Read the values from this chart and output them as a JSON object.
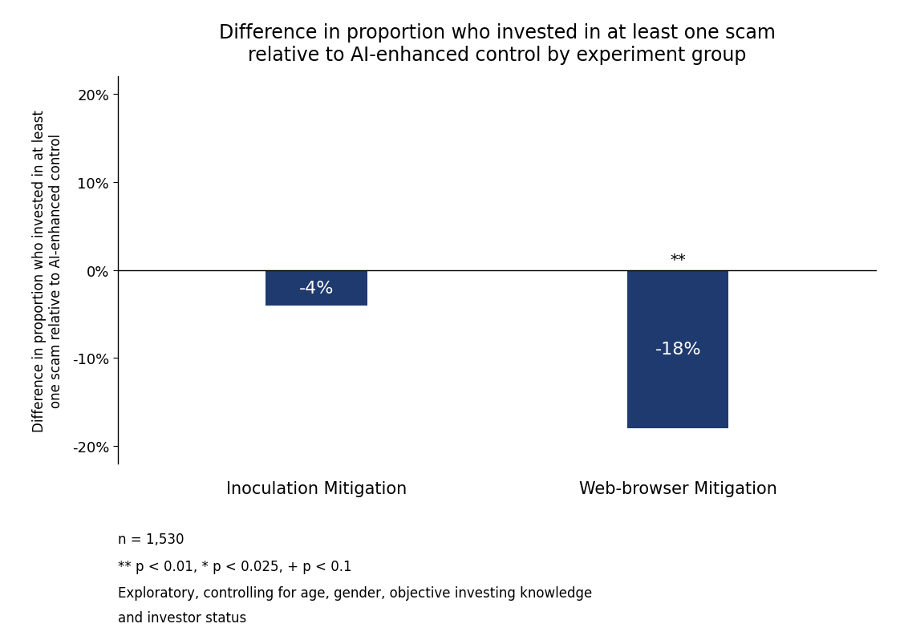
{
  "title": "Difference in proportion who invested in at least one scam\nrelative to AI-enhanced control by experiment group",
  "ylabel": "Difference in proportion who invested in at least\none scam relative to AI-enhanced control",
  "categories": [
    "Inoculation Mitigation",
    "Web-browser Mitigation"
  ],
  "values": [
    -0.04,
    -0.18
  ],
  "bar_labels": [
    "-4%",
    "-18%"
  ],
  "bar_color": "#1f3a6e",
  "significance_labels": [
    "",
    "**"
  ],
  "ylim": [
    -0.22,
    0.22
  ],
  "yticks": [
    -0.2,
    -0.1,
    0.0,
    0.1,
    0.2
  ],
  "ytick_labels": [
    "-20%",
    "-10%",
    "0%",
    "10%",
    "20%"
  ],
  "bar_width": 0.28,
  "footnote_line1": "n = 1,530",
  "footnote_line2": "** p < 0.01, * p < 0.025, + p < 0.1",
  "footnote_line3": "Exploratory, controlling for age, gender, objective investing knowledge",
  "footnote_line4": "and investor status",
  "background_color": "#ffffff",
  "title_fontsize": 17,
  "ylabel_fontsize": 12,
  "tick_fontsize": 13,
  "xtick_fontsize": 15,
  "bar_label_fontsize": 16,
  "footnote_fontsize": 12,
  "sig_label_fontsize": 14
}
